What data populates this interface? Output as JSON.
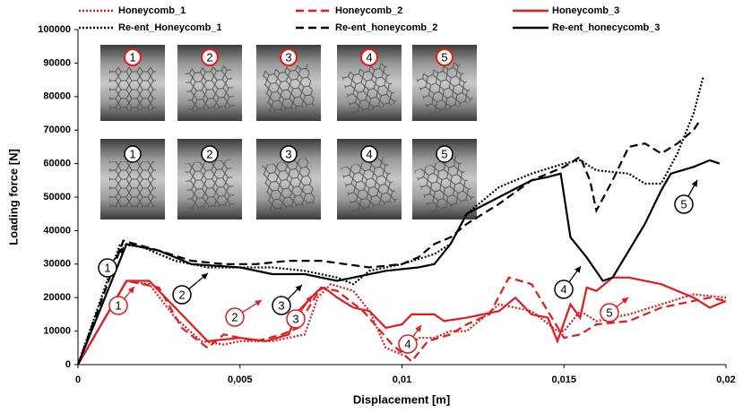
{
  "chart_data": {
    "type": "line",
    "x_label": "Displacement [m]",
    "y_label": "Loading force [N]",
    "xlim": [
      0,
      0.02
    ],
    "xticks": [
      0,
      {
        "value": 0.005,
        "label": "0,005"
      },
      {
        "value": 0.01,
        "label": "0,01"
      },
      {
        "value": 0.015,
        "label": "0,015"
      },
      {
        "value": 0.02,
        "label": "0,02"
      }
    ],
    "ylim": [
      0,
      100000
    ],
    "yticks": [
      0,
      10000,
      20000,
      30000,
      40000,
      50000,
      60000,
      70000,
      80000,
      90000,
      100000
    ],
    "grid": false,
    "series": [
      {
        "name": "Honeycomb_1",
        "color": "#e8191e",
        "dash": "dotted",
        "x": [
          0,
          0.0015,
          0.0022,
          0.003,
          0.0038,
          0.0045,
          0.005,
          0.006,
          0.007,
          0.0074,
          0.0078,
          0.0085,
          0.009,
          0.0095,
          0.01,
          0.0105,
          0.011,
          0.0115,
          0.012,
          0.013,
          0.014,
          0.0148,
          0.015,
          0.0155,
          0.016,
          0.017,
          0.018,
          0.019,
          0.02
        ],
        "values": [
          0,
          25000,
          24000,
          14000,
          7000,
          6000,
          7000,
          7000,
          9000,
          20000,
          24000,
          22000,
          16000,
          5000,
          3000,
          8000,
          8000,
          10000,
          10000,
          18000,
          16000,
          10000,
          10000,
          16000,
          13000,
          15000,
          18000,
          21000,
          20000
        ]
      },
      {
        "name": "Honeycomb_2",
        "color": "#e8191e",
        "dash": "dashed",
        "x": [
          0,
          0.0015,
          0.0025,
          0.0032,
          0.004,
          0.0045,
          0.0055,
          0.0063,
          0.0068,
          0.007,
          0.0075,
          0.008,
          0.0088,
          0.0097,
          0.0103,
          0.0108,
          0.0115,
          0.012,
          0.0127,
          0.0133,
          0.014,
          0.015,
          0.0155,
          0.016,
          0.017,
          0.018,
          0.0195,
          0.02
        ],
        "values": [
          0,
          25000,
          23000,
          11000,
          5000,
          9000,
          7000,
          9000,
          11000,
          15000,
          23000,
          22000,
          16000,
          6000,
          1000,
          7000,
          9000,
          12000,
          15000,
          26000,
          24000,
          8000,
          9000,
          12000,
          13000,
          17000,
          20000,
          19000
        ]
      },
      {
        "name": "Honeycomb_3",
        "color": "#e8191e",
        "dash": "solid",
        "x": [
          0,
          0.0015,
          0.0022,
          0.004,
          0.005,
          0.0058,
          0.0065,
          0.0068,
          0.007,
          0.0074,
          0.0076,
          0.008,
          0.0085,
          0.009,
          0.0095,
          0.01,
          0.0103,
          0.011,
          0.0113,
          0.012,
          0.013,
          0.0135,
          0.014,
          0.0145,
          0.0148,
          0.0152,
          0.0155,
          0.0157,
          0.016,
          0.0165,
          0.017,
          0.018,
          0.019,
          0.0195,
          0.02
        ],
        "values": [
          0,
          25000,
          25000,
          7000,
          8000,
          7000,
          9000,
          16000,
          18000,
          22000,
          23000,
          20000,
          17000,
          16000,
          11000,
          12000,
          15000,
          15000,
          13000,
          14000,
          16000,
          20000,
          15000,
          14000,
          7000,
          18000,
          14000,
          23000,
          22000,
          26000,
          26000,
          24000,
          20000,
          17000,
          19000
        ]
      },
      {
        "name": "Re-ent_Honeycomb_1",
        "color": "#000000",
        "dash": "dotted",
        "x": [
          0,
          0.0013,
          0.002,
          0.003,
          0.004,
          0.005,
          0.006,
          0.007,
          0.008,
          0.0085,
          0.009,
          0.01,
          0.011,
          0.0115,
          0.012,
          0.013,
          0.014,
          0.015,
          0.0155,
          0.016,
          0.017,
          0.0175,
          0.018,
          0.0185,
          0.019,
          0.0193
        ],
        "values": [
          0,
          36000,
          35000,
          31000,
          29000,
          29000,
          29000,
          28000,
          26000,
          24000,
          28000,
          30000,
          33000,
          36000,
          45000,
          53000,
          57000,
          60000,
          61000,
          58000,
          57000,
          54000,
          54000,
          63000,
          75000,
          86000
        ]
      },
      {
        "name": "Re-ent_honeycomb_2",
        "color": "#000000",
        "dash": "dashed",
        "x": [
          0,
          0.0014,
          0.0025,
          0.0035,
          0.0045,
          0.0055,
          0.0065,
          0.0075,
          0.009,
          0.01,
          0.0105,
          0.011,
          0.0115,
          0.012,
          0.013,
          0.014,
          0.015,
          0.0155,
          0.0158,
          0.016,
          0.0165,
          0.017,
          0.0175,
          0.018,
          0.0185,
          0.019,
          0.0192
        ],
        "values": [
          0,
          37000,
          34000,
          31000,
          30000,
          30000,
          31000,
          31000,
          29000,
          30000,
          32000,
          36000,
          38000,
          42000,
          48000,
          55000,
          59000,
          62000,
          55000,
          46000,
          55000,
          65000,
          66000,
          63000,
          66000,
          70000,
          73000
        ]
      },
      {
        "name": "Re-ent_honecycomb_3",
        "color": "#000000",
        "dash": "solid",
        "x": [
          0,
          0.0015,
          0.0025,
          0.0035,
          0.005,
          0.006,
          0.007,
          0.008,
          0.0085,
          0.0095,
          0.0105,
          0.011,
          0.0115,
          0.012,
          0.013,
          0.014,
          0.0145,
          0.0149,
          0.0152,
          0.0157,
          0.0162,
          0.0165,
          0.017,
          0.0175,
          0.018,
          0.0183,
          0.019,
          0.0195,
          0.0198
        ],
        "values": [
          0,
          36000,
          34000,
          30000,
          29000,
          27000,
          27000,
          25000,
          26000,
          28000,
          29000,
          30000,
          36000,
          45000,
          50000,
          55000,
          56000,
          57000,
          38000,
          32000,
          25000,
          26000,
          34000,
          42000,
          52000,
          57000,
          59000,
          61000,
          60000
        ]
      }
    ],
    "annotations": [
      {
        "text": "1",
        "color": "#000000"
      },
      {
        "text": "2",
        "color": "#000000"
      },
      {
        "text": "3",
        "color": "#000000"
      },
      {
        "text": "4",
        "color": "#000000"
      },
      {
        "text": "5",
        "color": "#000000"
      },
      {
        "text": "1",
        "color": "#e8191e"
      },
      {
        "text": "2",
        "color": "#e8191e"
      },
      {
        "text": "3",
        "color": "#e8191e"
      },
      {
        "text": "4",
        "color": "#e8191e"
      },
      {
        "text": "5",
        "color": "#e8191e"
      }
    ],
    "photo_labels_top": [
      "1",
      "2",
      "3",
      "4",
      "5"
    ],
    "photo_labels_bottom": [
      "1",
      "2",
      "3",
      "4",
      "5"
    ]
  }
}
